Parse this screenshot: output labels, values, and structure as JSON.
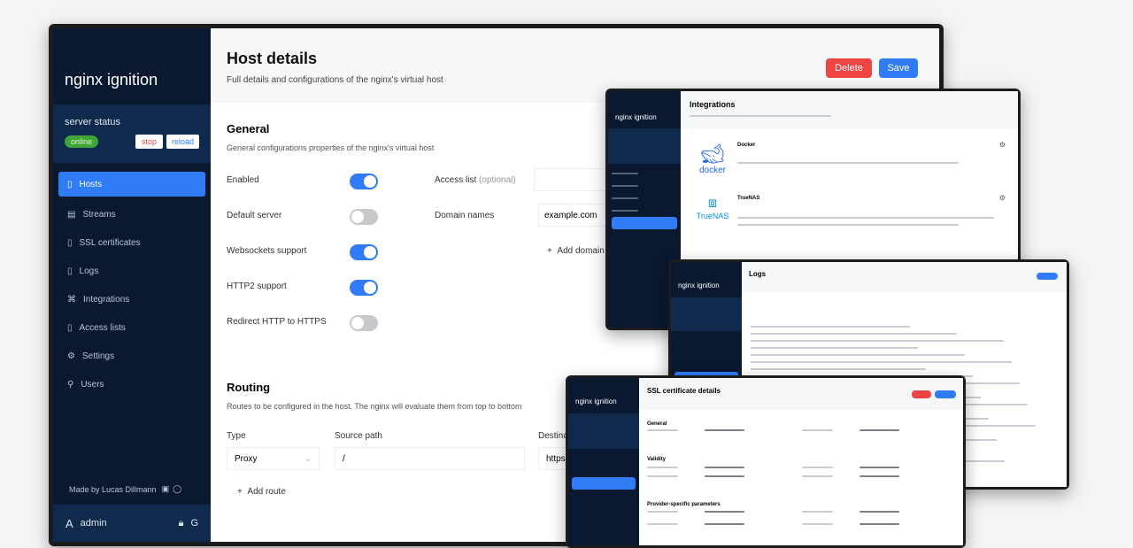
{
  "main": {
    "brand": "nginx ignition",
    "server_status_label": "server status",
    "status_badge": "online",
    "stop_label": "stop",
    "reload_label": "reload",
    "nav": [
      {
        "label": "Hosts",
        "icon": "server-icon"
      },
      {
        "label": "Streams",
        "icon": "stream-icon"
      },
      {
        "label": "SSL certificates",
        "icon": "certificate-icon"
      },
      {
        "label": "Logs",
        "icon": "file-icon"
      },
      {
        "label": "Integrations",
        "icon": "plug-icon"
      },
      {
        "label": "Access lists",
        "icon": "lock-icon"
      },
      {
        "label": "Settings",
        "icon": "gear-icon"
      },
      {
        "label": "Users",
        "icon": "users-icon"
      }
    ],
    "made_by": "Made by Lucas Dillmann",
    "user": "admin",
    "title": "Host details",
    "subtitle": "Full details and configurations of the nginx's virtual host",
    "delete_label": "Delete",
    "save_label": "Save",
    "general": {
      "title": "General",
      "subtitle": "General configurations properties of the nginx's virtual host",
      "toggles": [
        {
          "label": "Enabled",
          "on": true
        },
        {
          "label": "Default server",
          "on": false
        },
        {
          "label": "Websockets support",
          "on": true
        },
        {
          "label": "HTTP2 support",
          "on": true
        },
        {
          "label": "Redirect HTTP to HTTPS",
          "on": false
        }
      ],
      "access_list_label": "Access list",
      "access_list_optional": "(optional)",
      "domain_names_label": "Domain names",
      "domain_value": "example.com",
      "add_domain_label": "Add domain"
    },
    "routing": {
      "title": "Routing",
      "subtitle": "Routes to be configured in the host. The nginx will evaluate them from top to bottom",
      "col_type": "Type",
      "col_source": "Source path",
      "col_dest": "Destination",
      "type_value": "Proxy",
      "source_value": "/",
      "dest_value": "https",
      "add_route_label": "Add route"
    }
  },
  "integrations": {
    "brand": "nginx ignition",
    "title": "Integrations",
    "items": [
      {
        "name": "Docker",
        "logo": "docker"
      },
      {
        "name": "TrueNAS",
        "logo": "TrueNAS"
      }
    ]
  },
  "logs": {
    "brand": "nginx ignition",
    "title": "Logs"
  },
  "ssl": {
    "brand": "nginx ignition",
    "title": "SSL certificate details",
    "sections": [
      "General",
      "Validity",
      "Provider-specific parameters"
    ]
  },
  "colors": {
    "sidebar": "#0a1830",
    "accent": "#2f7cf6",
    "danger": "#ef4444",
    "online": "#3fa535"
  }
}
